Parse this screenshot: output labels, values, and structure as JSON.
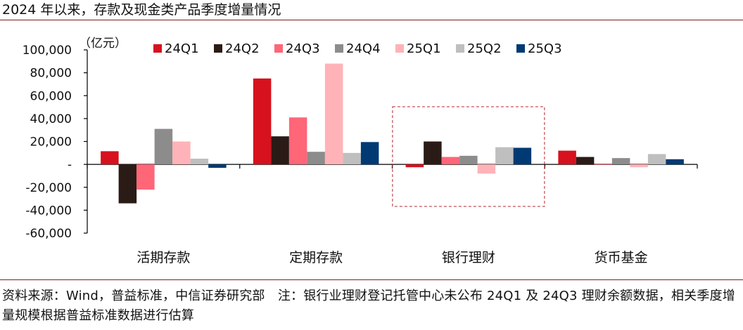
{
  "title": "2024 年以来，存款及现金类产品季度增量情况",
  "footnote": "资料来源：Wind，普益标准，中信证券研究部　注：银行业理财登记托管中心未公布 24Q1 及 24Q3 理财余额数据，相关季度增量规模根据普益标准数据进行估算",
  "chart_data": {
    "type": "bar",
    "unit_label": "（亿元）",
    "categories": [
      "活期存款",
      "定期存款",
      "银行理财",
      "货币基金"
    ],
    "ylim": [
      -60000,
      100000
    ],
    "yticks": [
      100000,
      80000,
      60000,
      40000,
      20000,
      0,
      -20000,
      -40000,
      -60000
    ],
    "ytick_labels": [
      "100,000",
      "80,000",
      "60,000",
      "40,000",
      "20,000",
      "-",
      "-20,000",
      "-40,000",
      "-60,000"
    ],
    "legend_position": "top",
    "grid": false,
    "highlight_box_category": "银行理财",
    "series": [
      {
        "name": "24Q1",
        "color": "#d7111e",
        "values": [
          11500,
          75000,
          -2500,
          12000
        ]
      },
      {
        "name": "24Q2",
        "color": "#2b1b17",
        "values": [
          -34000,
          24500,
          20000,
          6500
        ]
      },
      {
        "name": "24Q3",
        "color": "#ff6678",
        "values": [
          -22000,
          41000,
          6500,
          -500
        ]
      },
      {
        "name": "24Q4",
        "color": "#8c8c8c",
        "values": [
          31000,
          11000,
          7500,
          5500
        ]
      },
      {
        "name": "25Q1",
        "color": "#ffb3b8",
        "values": [
          20000,
          88000,
          -8000,
          -2500
        ]
      },
      {
        "name": "25Q2",
        "color": "#bfbfbf",
        "values": [
          5000,
          10000,
          15000,
          9000
        ]
      },
      {
        "name": "25Q3",
        "color": "#013a73",
        "values": [
          -3000,
          19500,
          14500,
          4500
        ]
      }
    ]
  }
}
